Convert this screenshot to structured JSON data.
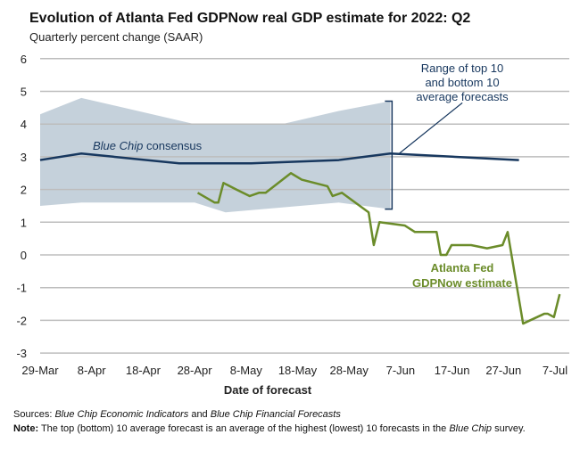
{
  "chart_data": {
    "type": "line",
    "title": "Evolution of Atlanta Fed GDPNow real GDP estimate for 2022: Q2",
    "subtitle": "Quarterly percent change (SAAR)",
    "xlabel": "Date of forecast",
    "ylabel": "",
    "ylim": [
      -3,
      6
    ],
    "yticks": [
      "6",
      "5",
      "4",
      "3",
      "2",
      "1",
      "0",
      "-1",
      "-2",
      "-3"
    ],
    "x_unit": "days since 29-Mar",
    "xlim": [
      0,
      100
    ],
    "xticks": [
      {
        "d": 0,
        "label": "29-Mar"
      },
      {
        "d": 10,
        "label": "8-Apr"
      },
      {
        "d": 20,
        "label": "18-Apr"
      },
      {
        "d": 30,
        "label": "28-Apr"
      },
      {
        "d": 40,
        "label": "8-May"
      },
      {
        "d": 50,
        "label": "18-May"
      },
      {
        "d": 60,
        "label": "28-May"
      },
      {
        "d": 70,
        "label": "7-Jun"
      },
      {
        "d": 80,
        "label": "17-Jun"
      },
      {
        "d": 90,
        "label": "27-Jun"
      },
      {
        "d": 100,
        "label": "7-Jul"
      }
    ],
    "grid": true,
    "series": [
      {
        "name": "Blue Chip consensus",
        "label_italic": "Blue Chip",
        "label_rest": " consensus",
        "color": "#17375e",
        "points": [
          [
            0,
            2.9
          ],
          [
            8,
            3.1
          ],
          [
            27,
            2.8
          ],
          [
            41,
            2.8
          ],
          [
            58,
            2.9
          ],
          [
            68,
            3.1
          ],
          [
            93,
            2.9
          ]
        ]
      },
      {
        "name": "Atlanta Fed GDPNow estimate",
        "label_line1": "Atlanta Fed",
        "label_line2": "GDPNow estimate",
        "color": "#6b8c2a",
        "points": [
          [
            30.6,
            1.9
          ],
          [
            33.9,
            1.6
          ],
          [
            34.6,
            1.6
          ],
          [
            35.6,
            2.2
          ],
          [
            38.1,
            2.0
          ],
          [
            40.7,
            1.8
          ],
          [
            42.5,
            1.9
          ],
          [
            43.8,
            1.9
          ],
          [
            48.7,
            2.5
          ],
          [
            50.8,
            2.3
          ],
          [
            55.8,
            2.1
          ],
          [
            56.8,
            1.8
          ],
          [
            58.6,
            1.9
          ],
          [
            63.8,
            1.3
          ],
          [
            64.8,
            0.3
          ],
          [
            65.9,
            1.0
          ],
          [
            70.8,
            0.9
          ],
          [
            72.8,
            0.7
          ],
          [
            77,
            0.7
          ],
          [
            77.8,
            0.0
          ],
          [
            78.9,
            0.0
          ],
          [
            79.9,
            0.3
          ],
          [
            83.7,
            0.3
          ],
          [
            86.8,
            0.2
          ],
          [
            89.8,
            0.3
          ],
          [
            90.8,
            0.7
          ],
          [
            93.8,
            -2.1
          ],
          [
            97.9,
            -1.8
          ],
          [
            98.6,
            -1.8
          ],
          [
            99.8,
            -1.9
          ],
          [
            100.9,
            -1.2
          ]
        ]
      }
    ],
    "band": {
      "name": "Range of top 10 and bottom 10 average forecasts",
      "label_lines": [
        "Range of top 10",
        "and bottom 10",
        "average forecasts"
      ],
      "color": "#c5d1db",
      "upper": [
        [
          0,
          4.3
        ],
        [
          8,
          4.8
        ],
        [
          30,
          4.0
        ],
        [
          47,
          4.0
        ],
        [
          58,
          4.4
        ],
        [
          68,
          4.7
        ]
      ],
      "lower": [
        [
          0,
          1.5
        ],
        [
          8,
          1.6
        ],
        [
          30,
          1.6
        ],
        [
          36,
          1.3
        ],
        [
          58,
          1.6
        ],
        [
          68,
          1.4
        ]
      ]
    }
  },
  "sources": {
    "label": "Sources: ",
    "italic1": "Blue Chip Economic Indicators",
    "mid": " and ",
    "italic2": "Blue Chip Financial Forecasts"
  },
  "note": {
    "label": "Note:",
    "text1": " The top (bottom) 10 average forecast is an average of the highest (lowest) 10 forecasts in the ",
    "italic": "Blue Chip",
    "text2": " survey."
  }
}
